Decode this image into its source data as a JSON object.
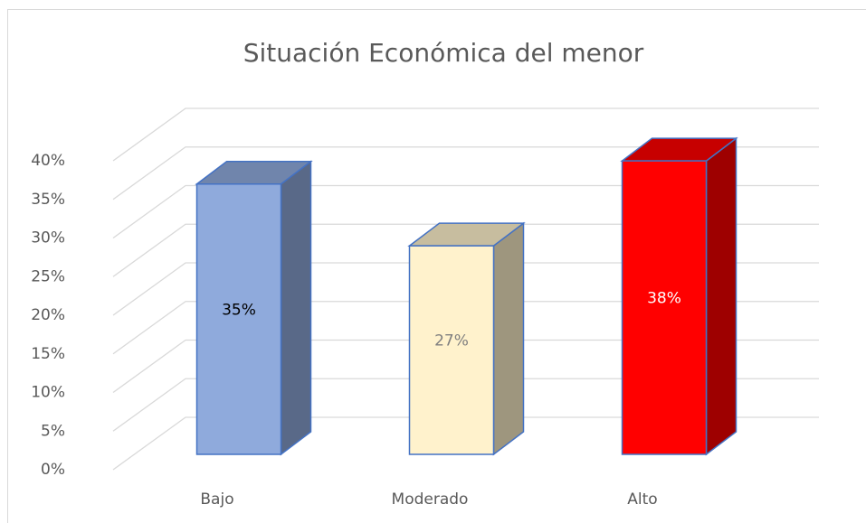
{
  "chart_data": {
    "type": "bar3d",
    "title": "Situación  Económica  del  menor",
    "categories": [
      "Bajo",
      "Moderado",
      "Alto"
    ],
    "values": [
      35,
      27,
      38
    ],
    "value_labels": [
      "35%",
      "27%",
      "38%"
    ],
    "colors": [
      "#8faadc",
      "#fff2cc",
      "#ff0000"
    ],
    "ylim": [
      0,
      40
    ],
    "yticks": [
      {
        "value": 0,
        "label": "0%"
      },
      {
        "value": 5,
        "label": "5%"
      },
      {
        "value": 10,
        "label": "10%"
      },
      {
        "value": 15,
        "label": "15%"
      },
      {
        "value": 20,
        "label": "20%"
      },
      {
        "value": 25,
        "label": "25%"
      },
      {
        "value": 30,
        "label": "30%"
      },
      {
        "value": 35,
        "label": "35%"
      },
      {
        "value": 40,
        "label": "40%"
      }
    ],
    "grid": true
  }
}
